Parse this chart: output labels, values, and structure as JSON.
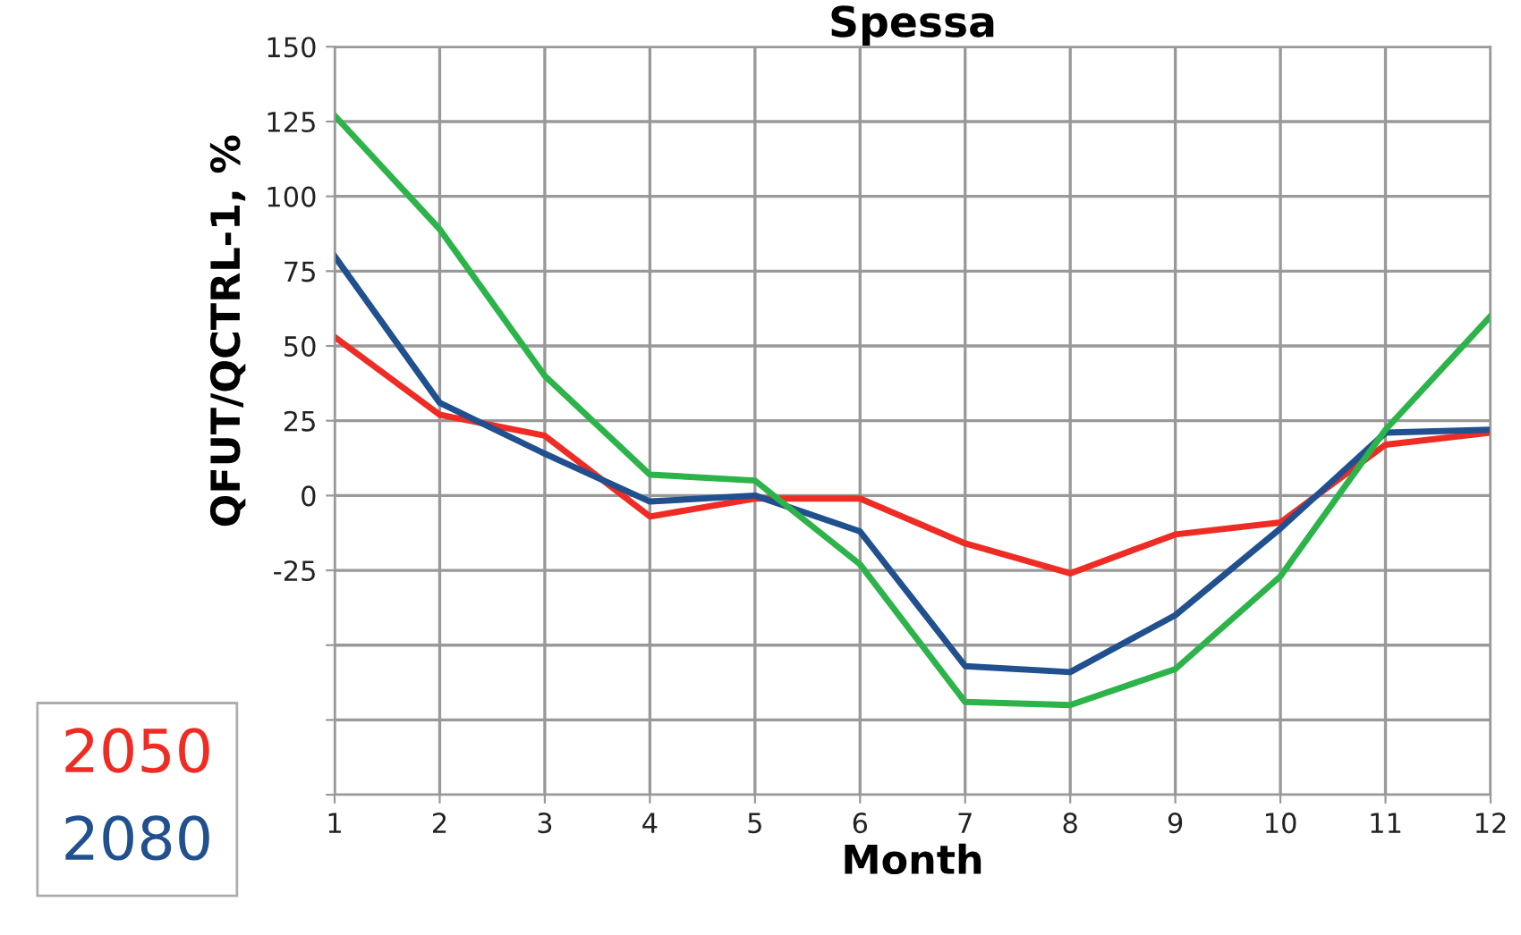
{
  "chart_data": {
    "type": "line",
    "title": "Spessa",
    "xlabel": "Month",
    "ylabel": "QFUT/QCTRL-1, %",
    "x": [
      1,
      2,
      3,
      4,
      5,
      6,
      7,
      8,
      9,
      10,
      11,
      12
    ],
    "series": [
      {
        "name": "2050",
        "color": "#ee2c24",
        "values": [
          53,
          27,
          20,
          -7,
          -1,
          -1,
          -16,
          -26,
          -13,
          -9,
          17,
          21
        ]
      },
      {
        "name": "2080",
        "color": "#21508f",
        "values": [
          80,
          31,
          14,
          -2,
          0,
          -12,
          -57,
          -59,
          -40,
          -11,
          21,
          22
        ]
      },
      {
        "color": "#2cb34a",
        "values": [
          127,
          89,
          40,
          7,
          5,
          -23,
          -69,
          -70,
          -58,
          -27,
          22,
          60
        ]
      }
    ],
    "xlim": [
      1,
      12
    ],
    "xticks": [
      1,
      2,
      3,
      4,
      5,
      6,
      7,
      8,
      9,
      10,
      11,
      12
    ],
    "ylim": [
      -100,
      150
    ],
    "yticks": [
      {
        "value": -100,
        "label": null
      },
      {
        "value": -75,
        "label": null
      },
      {
        "value": -50,
        "label": null
      },
      -25,
      0,
      25,
      50,
      75,
      100,
      125,
      150
    ],
    "grid": true,
    "legend": "bottom left",
    "marker": "none",
    "line_style": "solid"
  }
}
